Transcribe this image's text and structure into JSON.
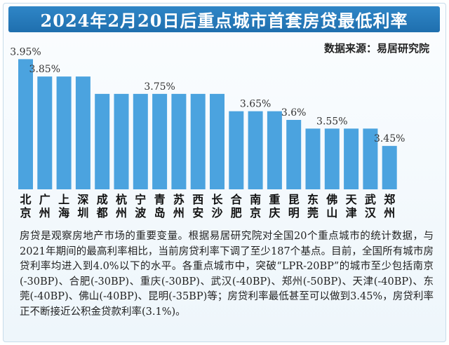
{
  "title": "2024年2月20日后重点城市首套房贷最低利率",
  "source": "数据来源：易居研究院",
  "chart_data": {
    "type": "bar",
    "title": "2024年2月20日后重点城市首套房贷最低利率",
    "xlabel": "",
    "ylabel": "",
    "ylim": [
      3.2,
      4.0
    ],
    "categories": [
      "北京",
      "广州",
      "上海",
      "深圳",
      "成都",
      "杭州",
      "宁波",
      "青岛",
      "苏州",
      "西安",
      "长沙",
      "合肥",
      "南京",
      "重庆",
      "昆明",
      "东莞",
      "佛山",
      "天津",
      "武汉",
      "郑州"
    ],
    "values": [
      3.95,
      3.85,
      3.85,
      3.85,
      3.75,
      3.75,
      3.75,
      3.75,
      3.75,
      3.75,
      3.75,
      3.65,
      3.65,
      3.65,
      3.6,
      3.55,
      3.55,
      3.55,
      3.55,
      3.45
    ],
    "data_labels": [
      {
        "index": 0,
        "text": "3.95%"
      },
      {
        "index": 1,
        "text": "3.85%"
      },
      {
        "index": 7,
        "text": "3.75%"
      },
      {
        "index": 12,
        "text": "3.65%"
      },
      {
        "index": 14,
        "text": "3.6%"
      },
      {
        "index": 16,
        "text": "3.55%"
      },
      {
        "index": 19,
        "text": "3.45%"
      }
    ],
    "bar_color": "#4ba3df"
  },
  "paragraph": "房贷是观察房地产市场的重要变量。根据易居研究院对全国20个重点城市的统计数据，与2021年期间的最高利率相比，当前房贷利率下调了至少187个基点。目前，全国所有城市房贷利率均进入到4.0%以下的水平。各重点城市中，突破“LPR-20BP”的城市至少包括南京(-30BP)、合肥(-30BP)、重庆(-30BP)、武汉(-40BP)、郑州(-50BP)、天津(-40BP)、东莞(-40BP)、佛山(-40BP)、昆明(-35BP)等；房贷利率最低甚至可以做到3.45%，房贷利率正不断接近公积金贷款利率(3.1%)。"
}
